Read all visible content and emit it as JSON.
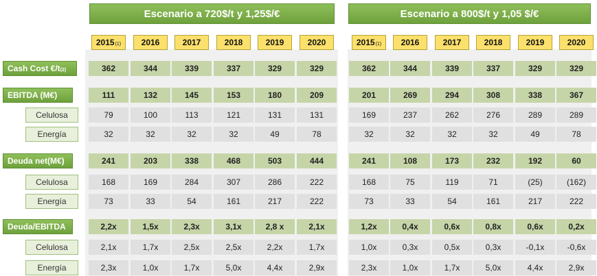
{
  "headers": {
    "left": "Escenario a 720$/t y 1,25$/€",
    "right": "Escenario a 800$/t y 1,05 $/€"
  },
  "years": [
    "2015",
    "2016",
    "2017",
    "2018",
    "2019",
    "2020"
  ],
  "year_note": "(1)",
  "rows": [
    {
      "label": "Cash Cost €/t",
      "note": "(2)",
      "type": "main",
      "left": [
        "362",
        "344",
        "339",
        "337",
        "329",
        "329"
      ],
      "right": [
        "362",
        "344",
        "339",
        "337",
        "329",
        "329"
      ]
    },
    {
      "label": "EBITDA (M€)",
      "type": "main",
      "left": [
        "111",
        "132",
        "145",
        "153",
        "180",
        "209"
      ],
      "right": [
        "201",
        "269",
        "294",
        "308",
        "338",
        "367"
      ]
    },
    {
      "label": "Celulosa",
      "type": "sub",
      "left": [
        "79",
        "100",
        "113",
        "121",
        "131",
        "131"
      ],
      "right": [
        "169",
        "237",
        "262",
        "276",
        "289",
        "289"
      ]
    },
    {
      "label": "Energía",
      "type": "sub",
      "left": [
        "32",
        "32",
        "32",
        "32",
        "49",
        "78"
      ],
      "right": [
        "32",
        "32",
        "32",
        "32",
        "49",
        "78"
      ]
    },
    {
      "label": "Deuda net(M€)",
      "type": "main",
      "left": [
        "241",
        "203",
        "338",
        "468",
        "503",
        "444"
      ],
      "right": [
        "241",
        "108",
        "173",
        "232",
        "192",
        "60"
      ]
    },
    {
      "label": "Celulosa",
      "type": "sub",
      "left": [
        "168",
        "169",
        "284",
        "307",
        "286",
        "222"
      ],
      "right": [
        "168",
        "75",
        "119",
        "71",
        "(25)",
        "(162)"
      ]
    },
    {
      "label": "Energía",
      "type": "sub",
      "left": [
        "73",
        "33",
        "54",
        "161",
        "217",
        "222"
      ],
      "right": [
        "73",
        "33",
        "54",
        "161",
        "217",
        "222"
      ]
    },
    {
      "label": "Deuda/EBITDA",
      "type": "main",
      "left": [
        "2,2x",
        "1,5x",
        "2,3x",
        "3,1x",
        "2,8 x",
        "2,1x"
      ],
      "right": [
        "1,2x",
        "0,4x",
        "0,6x",
        "0,8x",
        "0,6x",
        "0,2x"
      ]
    },
    {
      "label": "Celulosa",
      "type": "sub",
      "left": [
        "2,1x",
        "1,7x",
        "2,5x",
        "2,5x",
        "2,2x",
        "1,7x"
      ],
      "right": [
        "1,0x",
        "0,3x",
        "0,5x",
        "0,3x",
        "-0,1x",
        "-0,6x"
      ]
    },
    {
      "label": "Energía",
      "type": "sub",
      "left": [
        "2,3x",
        "1,0x",
        "1,7x",
        "5,0x",
        "4,4x",
        "2,9x"
      ],
      "right": [
        "2,3x",
        "1,0x",
        "1,7x",
        "5,0x",
        "4,4x",
        "2,9x"
      ]
    }
  ]
}
